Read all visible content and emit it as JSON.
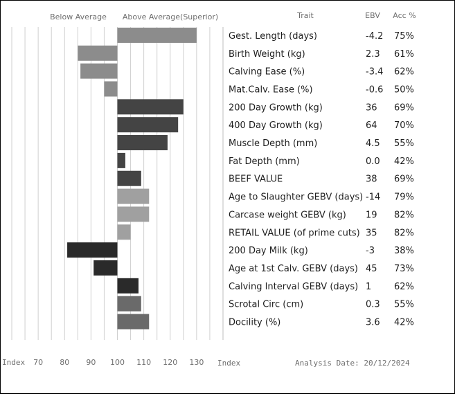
{
  "header": {
    "below_label": "Below Average",
    "above_label": "Above Average(Superior)",
    "trait_col": "Trait",
    "ebv_col": "EBV",
    "acc_col": "Acc %"
  },
  "footer": {
    "index_left": "Index",
    "index_right": "Index",
    "analysis_date": "Analysis Date: 20/12/2024"
  },
  "chart_data": {
    "type": "bar",
    "orientation": "horizontal",
    "baseline": 100,
    "xlim": [
      60,
      140
    ],
    "x_ticks": [
      "70",
      "80",
      "90",
      "100",
      "110",
      "120",
      "130"
    ],
    "rows": [
      {
        "trait": "Gest. Length (days)",
        "ebv": "-4.2",
        "acc": "75%",
        "index": 130,
        "color": "#8c8c8c"
      },
      {
        "trait": "Birth Weight (kg)",
        "ebv": "2.3",
        "acc": "61%",
        "index": 85,
        "color": "#8c8c8c"
      },
      {
        "trait": "Calving Ease (%)",
        "ebv": "-3.4",
        "acc": "62%",
        "index": 86,
        "color": "#8c8c8c"
      },
      {
        "trait": "Mat.Calv. Ease (%)",
        "ebv": "-0.6",
        "acc": "50%",
        "index": 95,
        "color": "#8c8c8c"
      },
      {
        "trait": "200 Day Growth (kg)",
        "ebv": "36",
        "acc": "69%",
        "index": 125,
        "color": "#444444"
      },
      {
        "trait": "400 Day Growth (kg)",
        "ebv": "64",
        "acc": "70%",
        "index": 123,
        "color": "#444444"
      },
      {
        "trait": "Muscle Depth (mm)",
        "ebv": "4.5",
        "acc": "55%",
        "index": 119,
        "color": "#444444"
      },
      {
        "trait": "Fat Depth (mm)",
        "ebv": "0.0",
        "acc": "42%",
        "index": 103,
        "color": "#444444"
      },
      {
        "trait": "BEEF VALUE",
        "ebv": "38",
        "acc": "69%",
        "index": 109,
        "color": "#444444"
      },
      {
        "trait": "Age to Slaughter GEBV (days)",
        "ebv": "-14",
        "acc": "79%",
        "index": 112,
        "color": "#a0a0a0"
      },
      {
        "trait": "Carcase weight GEBV (kg)",
        "ebv": "19",
        "acc": "82%",
        "index": 112,
        "color": "#a0a0a0"
      },
      {
        "trait": "RETAIL VALUE (of prime cuts)",
        "ebv": "35",
        "acc": "82%",
        "index": 105,
        "color": "#a0a0a0"
      },
      {
        "trait": "200 Day Milk (kg)",
        "ebv": "-3",
        "acc": "38%",
        "index": 81,
        "color": "#2a2a2a"
      },
      {
        "trait": "Age at 1st Calv. GEBV (days)",
        "ebv": "45",
        "acc": "73%",
        "index": 91,
        "color": "#2a2a2a"
      },
      {
        "trait": "Calving Interval GEBV (days)",
        "ebv": "1",
        "acc": "62%",
        "index": 108,
        "color": "#2a2a2a"
      },
      {
        "trait": "Scrotal Circ (cm)",
        "ebv": "0.3",
        "acc": "55%",
        "index": 109,
        "color": "#6a6a6a"
      },
      {
        "trait": "Docility (%)",
        "ebv": "3.6",
        "acc": "42%",
        "index": 112,
        "color": "#6a6a6a"
      }
    ]
  }
}
